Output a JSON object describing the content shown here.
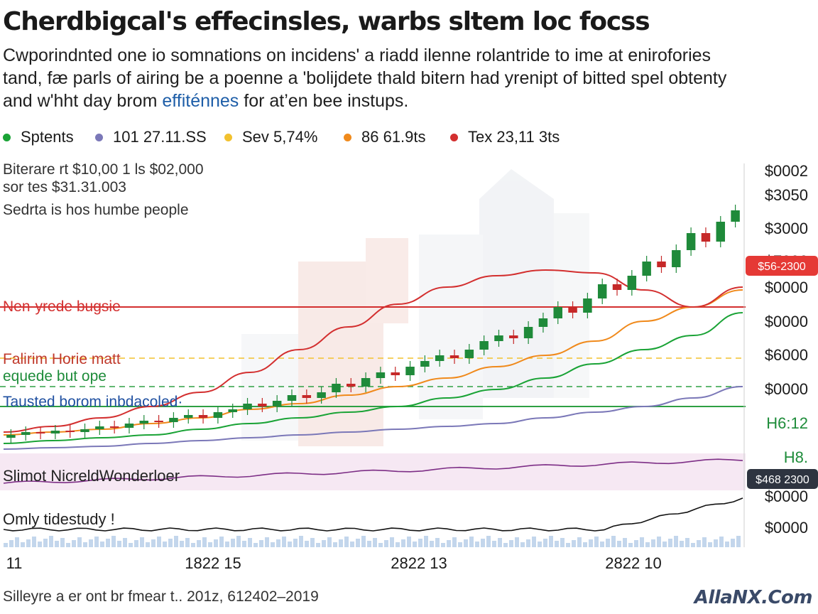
{
  "header": {
    "title": "Cherdbigcal's effecinsles, warbs sltem loc focss",
    "subtitle_line1": "Cwporindnted one io somnations on incidens' a riadd ilenne rolantride to ime at enirofories",
    "subtitle_line2": "tand, fæ parls of airing be a poenne a 'bolijdete thald bitern had yrenipt of bitted spel obtenty",
    "subtitle_line3_a": "and w'hht day brom ",
    "subtitle_line3_highlight": "effiténnes",
    "subtitle_line3_b": " for at’en bee instups."
  },
  "legend": [
    {
      "label": "Sptents",
      "color": "#1aa336"
    },
    {
      "label": "101 27.11.SS",
      "color": "#7b78b8"
    },
    {
      "label": "Sev 5,74%",
      "color": "#f2c12e"
    },
    {
      "label": "86 61.9ts",
      "color": "#f08a1c"
    },
    {
      "label": "Tex 23,11 3ts",
      "color": "#d32f2f"
    }
  ],
  "annotations": {
    "top_left_1": "Biterare rt $10,00 1 ls $02,000",
    "top_left_2": "sor tes $31.31.003",
    "top_left_3": "Sedrta is hos humbe people",
    "red_line_label": "Nen-yrede bugsie",
    "pink_label": "Falirim Horie matt",
    "green_label": "equede but ope",
    "blue_label": "Tausted borom inbdacoled·",
    "volume_label": "Slimot NicreldWonderloer",
    "bottom_label": "Omly tidestudy !"
  },
  "footer": "Silleyre a er ont br fmear t.. 201z, 612402–2019",
  "watermark": "AllaNX.Com",
  "chart_data": {
    "type": "line",
    "x_tick_labels": [
      "11",
      "1822 15",
      "2822 13",
      "2822 10"
    ],
    "y_tick_labels": [
      "$0002",
      "$3050",
      "$3000",
      "$7000",
      "$0000",
      "$0000",
      "$6000",
      "$0000",
      "H6:12",
      "H8.",
      "$0000",
      "$0000"
    ],
    "price_tags": {
      "red": "$56-2300",
      "dark": "$468 2300"
    },
    "series": [
      {
        "name": "Sptents",
        "color": "#1aa336",
        "values": [
          4,
          5,
          6,
          7,
          9,
          11,
          13,
          15,
          17,
          20,
          23,
          27,
          32,
          37,
          42,
          50
        ]
      },
      {
        "name": "101 27.11.SS",
        "color": "#7b78b8",
        "values": [
          2,
          2.5,
          3,
          4,
          5,
          6,
          7,
          8,
          9,
          10,
          11,
          13,
          15,
          17,
          20,
          24
        ]
      },
      {
        "name": "86 61.9ts",
        "color": "#f08a1c",
        "values": [
          7,
          8,
          9,
          11,
          13,
          16,
          18,
          21,
          24,
          27,
          31,
          35,
          40,
          47,
          52,
          58
        ]
      },
      {
        "name": "Tex 23,11 3ts",
        "color": "#d32f2f",
        "values": [
          8,
          10,
          13,
          17,
          22,
          29,
          37,
          45,
          53,
          59,
          63,
          65,
          64,
          58,
          52,
          59
        ]
      }
    ],
    "candles_close": [
      7,
      8,
      7.5,
      8.5,
      8,
      9,
      10,
      9.5,
      11,
      12,
      11.5,
      13,
      14,
      13,
      15,
      16,
      18,
      17,
      19,
      21,
      20,
      22,
      25,
      24,
      27,
      29,
      28,
      31,
      33,
      35,
      34,
      37,
      40,
      42,
      41,
      45,
      48,
      52,
      50,
      55,
      60,
      58,
      63,
      68,
      66,
      72,
      78,
      75,
      82,
      86
    ],
    "horizontal_lines": {
      "red": 52,
      "yellow": 34,
      "green_dashed": 24,
      "green_solid": 17
    },
    "ylim": [
      0,
      100
    ]
  }
}
